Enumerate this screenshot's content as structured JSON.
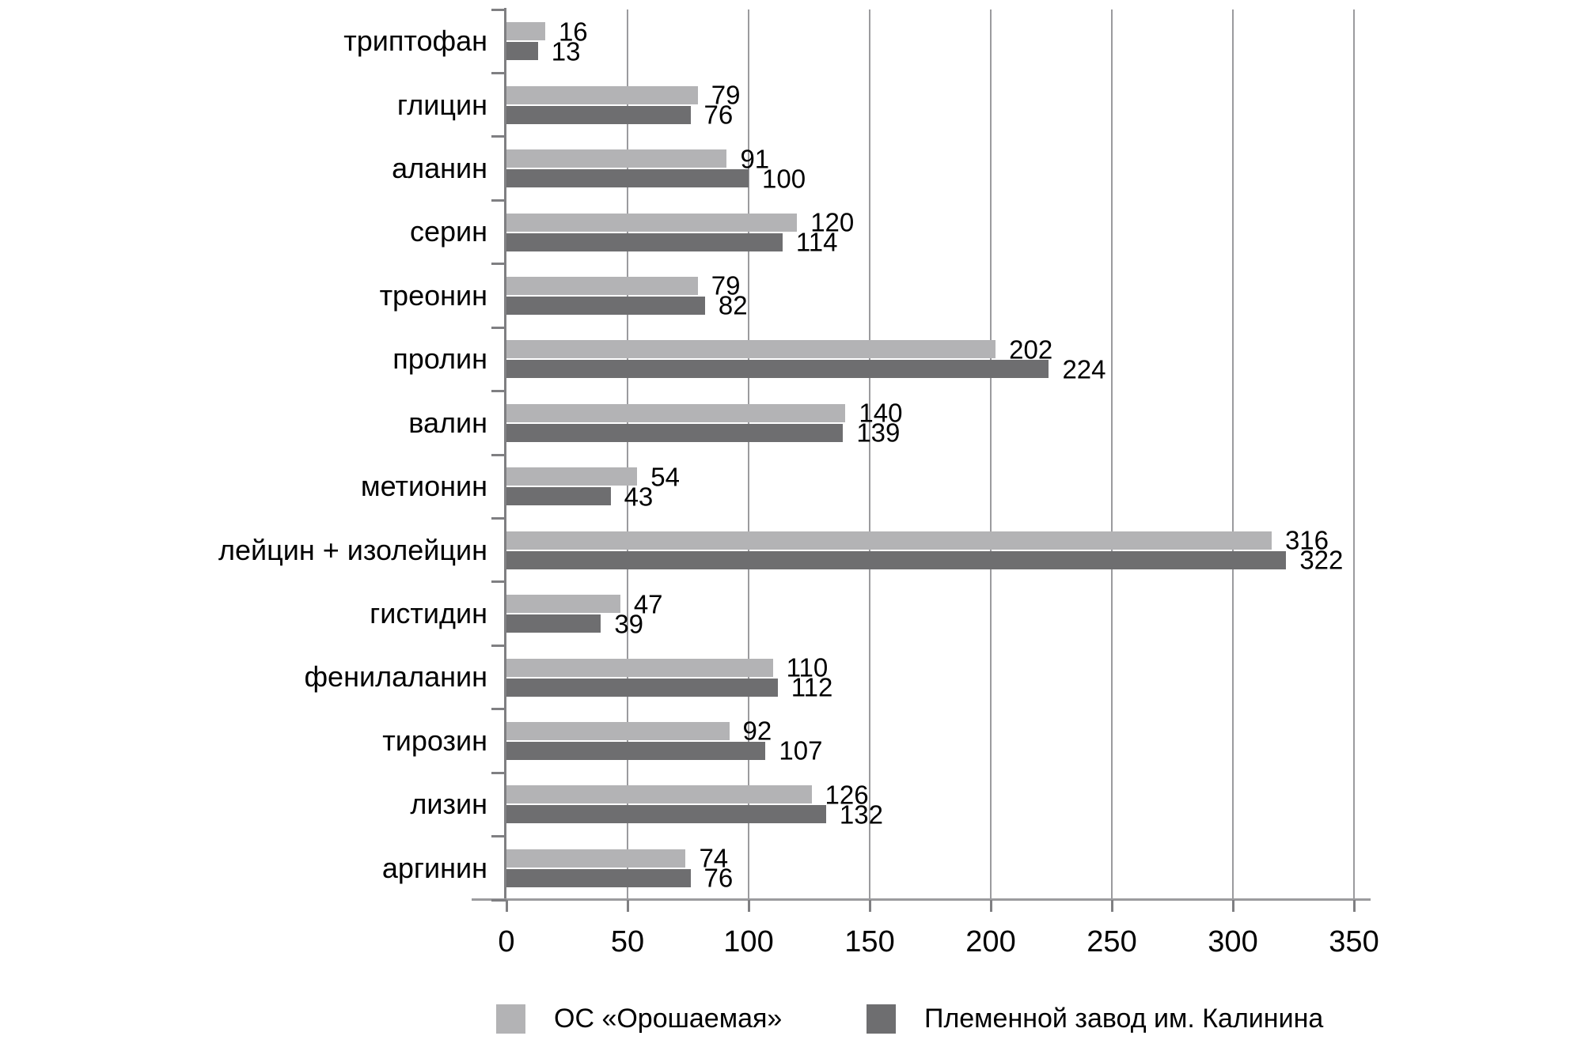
{
  "chart_data": {
    "type": "bar",
    "orientation": "horizontal",
    "title": "",
    "xlabel": "",
    "ylabel": "",
    "categories": [
      "триптофан",
      "глицин",
      "аланин",
      "серин",
      "треонин",
      "пролин",
      "валин",
      "метионин",
      "лейцин + изолейцин",
      "гистидин",
      "фенилаланин",
      "тирозин",
      "лизин",
      "аргинин"
    ],
    "series": [
      {
        "name": "ОС «Орошаемая»",
        "color": "#b3b3b5",
        "values": [
          16,
          79,
          91,
          120,
          79,
          202,
          140,
          54,
          316,
          47,
          110,
          92,
          126,
          74
        ]
      },
      {
        "name": "Племенной завод им. Калинина",
        "color": "#6e6e70",
        "values": [
          13,
          76,
          100,
          114,
          82,
          224,
          139,
          43,
          322,
          39,
          112,
          107,
          132,
          76
        ]
      }
    ],
    "value_labels_shown": true,
    "xticks": [
      0,
      50,
      100,
      150,
      200,
      250,
      300,
      350
    ],
    "xlim": [
      0,
      350
    ],
    "grid": "vertical",
    "legend_position": "bottom",
    "colors": {
      "series_light": "#b3b3b5",
      "series_dark": "#6e6e70",
      "gridline": "#9b9b9e",
      "axis": "#7f7f82",
      "text": "#000000",
      "background": "#ffffff"
    }
  }
}
